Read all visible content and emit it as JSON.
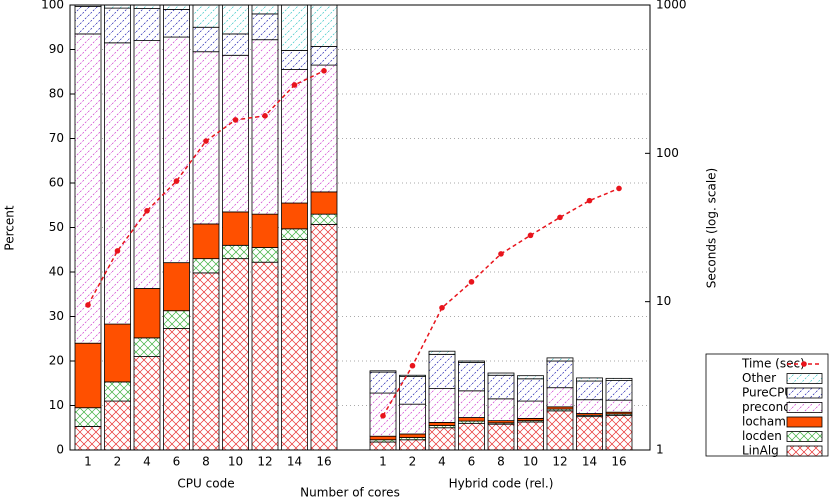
{
  "chart_data": {
    "type": "stacked-bar",
    "ylabel": "Percent",
    "y2label": "Seconds (log. scale)",
    "xlabel": "Number of cores",
    "groups": [
      "CPU code",
      "Hybrid code (rel.)"
    ],
    "categories": [
      "1",
      "2",
      "4",
      "6",
      "8",
      "10",
      "12",
      "14",
      "16",
      null,
      "1",
      "2",
      "4",
      "6",
      "8",
      "10",
      "12",
      "14",
      "16"
    ],
    "ylim": [
      0,
      100
    ],
    "yticks": [
      0,
      10,
      20,
      30,
      40,
      50,
      60,
      70,
      80,
      90,
      100
    ],
    "y2lim": [
      1,
      1000
    ],
    "y2ticks": [
      1,
      10,
      100,
      1000
    ],
    "y2log": true,
    "grid": true,
    "legend": "lower right",
    "series": [
      {
        "name": "Time (sec)",
        "type": "line",
        "axis": "y2",
        "color": "#e8141c",
        "values": [
          9.5,
          22,
          41,
          65,
          121,
          168,
          179,
          289,
          360,
          null,
          1.7,
          3.7,
          9.1,
          13.6,
          21,
          28,
          37,
          48,
          58
        ]
      },
      {
        "name": "Other",
        "color": "#3cc8c8",
        "hatch": "diagonal",
        "values": [
          0.3,
          0.7,
          0.8,
          1,
          5,
          6.5,
          2,
          10.2,
          9.3,
          null,
          0.3,
          0.3,
          0.7,
          0.3,
          0.5,
          0.7,
          0.7,
          0.7,
          0.5
        ]
      },
      {
        "name": "PureCPU",
        "color": "#2828b4",
        "hatch": "diagonal",
        "values": [
          6.2,
          7.8,
          7.2,
          6.2,
          5.5,
          4.8,
          5.8,
          4.3,
          4.2,
          null,
          4.7,
          6.2,
          7.7,
          6.4,
          5.3,
          5,
          6,
          4.2,
          4.4
        ]
      },
      {
        "name": "precond",
        "color": "#d040d0",
        "hatch": "diagonal",
        "values": [
          69.5,
          63.2,
          55.7,
          50.7,
          38.7,
          35.2,
          39.2,
          30,
          28.5,
          null,
          9.7,
          6.7,
          7.6,
          6,
          4.9,
          3.9,
          4.3,
          3.1,
          2.7
        ]
      },
      {
        "name": "locham",
        "color": "#ff5000",
        "hatch": "solid",
        "values": [
          14.5,
          13,
          11.1,
          10.8,
          7.8,
          7.5,
          7.5,
          5.8,
          5,
          null,
          0.8,
          0.8,
          0.7,
          0.8,
          0.5,
          0.5,
          0.5,
          0.4,
          0.4
        ]
      },
      {
        "name": "locden",
        "color": "#40b040",
        "hatch": "cross",
        "values": [
          4.2,
          4.3,
          4.2,
          4,
          3.2,
          3,
          3.3,
          2.4,
          2.3,
          null,
          0.5,
          0.5,
          0.5,
          0.5,
          0.3,
          0.3,
          0.4,
          0.3,
          0.3
        ]
      },
      {
        "name": "LinAlg",
        "color": "#e83030",
        "hatch": "cross",
        "values": [
          5.3,
          11,
          21,
          27.3,
          39.8,
          43,
          42.2,
          47.3,
          50.7,
          null,
          1.8,
          2.3,
          5,
          6,
          5.8,
          6.3,
          8.8,
          7.5,
          7.8
        ]
      }
    ]
  }
}
